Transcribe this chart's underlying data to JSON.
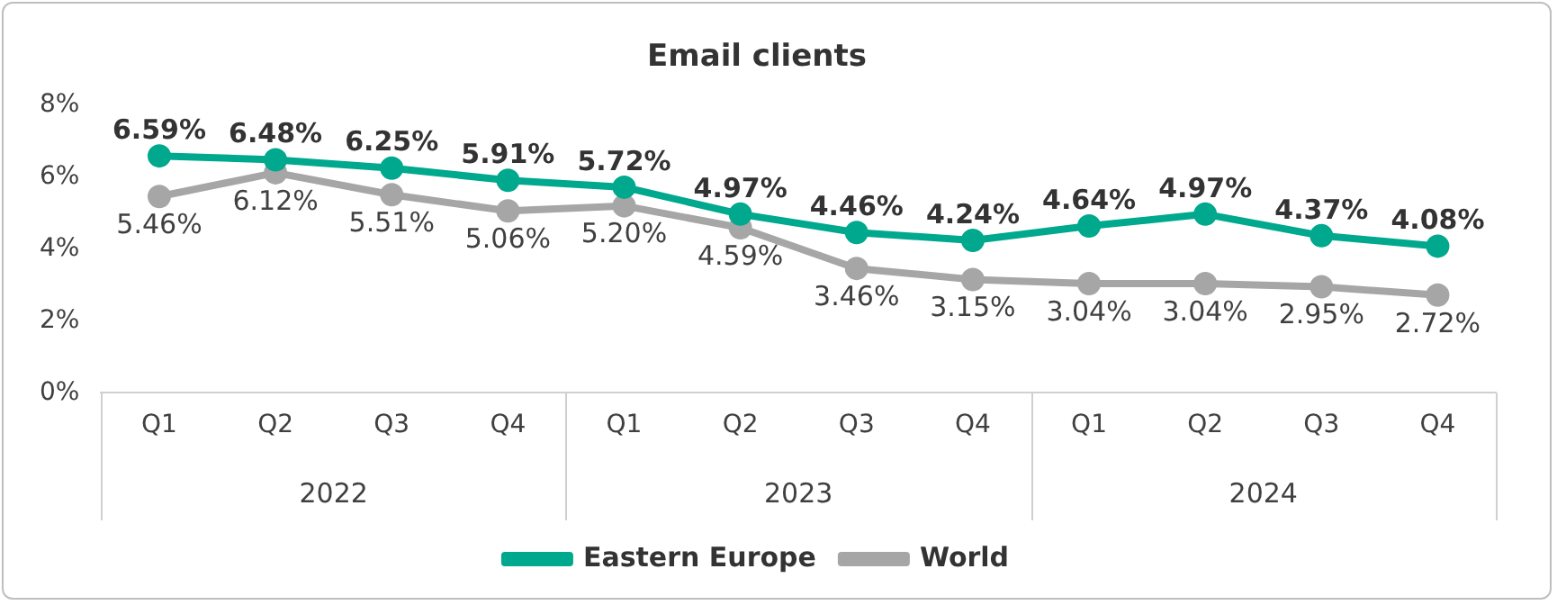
{
  "chart_data": {
    "type": "line",
    "title": "Email clients",
    "categories": [
      "Q1",
      "Q2",
      "Q3",
      "Q4",
      "Q1",
      "Q2",
      "Q3",
      "Q4",
      "Q1",
      "Q2",
      "Q3",
      "Q4"
    ],
    "annotations": [
      "2022",
      "2023",
      "2024"
    ],
    "series": [
      {
        "name": "Eastern Europe",
        "color": "#00a88e",
        "values": [
          6.59,
          6.48,
          6.25,
          5.91,
          5.72,
          4.97,
          4.46,
          4.24,
          4.64,
          4.97,
          4.37,
          4.08
        ],
        "value_labels": [
          "6.59%",
          "6.48%",
          "6.25%",
          "5.91%",
          "5.72%",
          "4.97%",
          "4.46%",
          "4.24%",
          "4.64%",
          "4.97%",
          "4.37%",
          "4.08%"
        ]
      },
      {
        "name": "World",
        "color": "#a6a6a6",
        "values": [
          5.46,
          6.12,
          5.51,
          5.06,
          5.2,
          4.59,
          3.46,
          3.15,
          3.04,
          3.04,
          2.95,
          2.72
        ],
        "value_labels": [
          "5.46%",
          "6.12%",
          "5.51%",
          "5.06%",
          "5.20%",
          "4.59%",
          "3.46%",
          "3.15%",
          "3.04%",
          "3.04%",
          "2.95%",
          "2.72%"
        ]
      }
    ],
    "ylim": [
      0,
      8
    ],
    "yticks": [
      {
        "value": 0,
        "label": "0%"
      },
      {
        "value": 2,
        "label": "2%"
      },
      {
        "value": 4,
        "label": "4%"
      },
      {
        "value": 6,
        "label": "6%"
      },
      {
        "value": 8,
        "label": "8%"
      }
    ],
    "marker": "circle",
    "line_style": "solid",
    "legend": "bottom"
  }
}
